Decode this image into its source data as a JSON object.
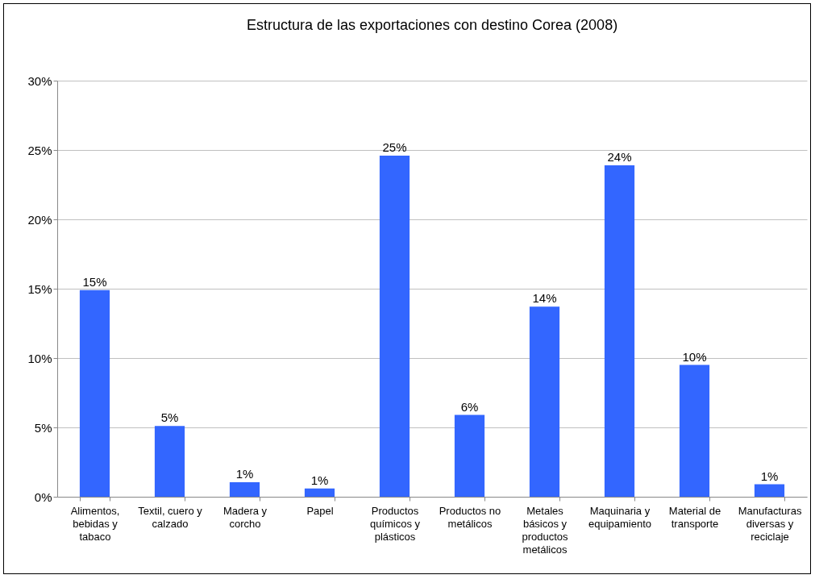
{
  "chart_data": {
    "type": "bar",
    "title": "Estructura de las exportaciones con destino Corea (2008)",
    "categories": [
      "Alimentos, bebidas y tabaco",
      "Textil, cuero y calzado",
      "Madera y corcho",
      "Papel",
      "Productos químicos y plásticos",
      "Productos no metálicos",
      "Metales básicos y productos metálicos",
      "Maquinaria y equipamiento",
      "Material de transporte",
      "Manufacturas diversas y reciclaje"
    ],
    "values": [
      14.9,
      5.1,
      1.05,
      0.6,
      24.6,
      5.9,
      13.7,
      23.9,
      9.5,
      0.9
    ],
    "value_labels": [
      "15%",
      "5%",
      "1%",
      "1%",
      "25%",
      "6%",
      "14%",
      "24%",
      "10%",
      "1%"
    ],
    "color": "#3366ff",
    "ylim": [
      0,
      30
    ],
    "yticks": [
      {
        "value": 0,
        "label": "0%"
      },
      {
        "value": 5,
        "label": "5%"
      },
      {
        "value": 10,
        "label": "10%"
      },
      {
        "value": 15,
        "label": "15%"
      },
      {
        "value": 20,
        "label": "20%"
      },
      {
        "value": 25,
        "label": "25%"
      },
      {
        "value": 30,
        "label": "30%"
      }
    ],
    "grid": "y"
  }
}
